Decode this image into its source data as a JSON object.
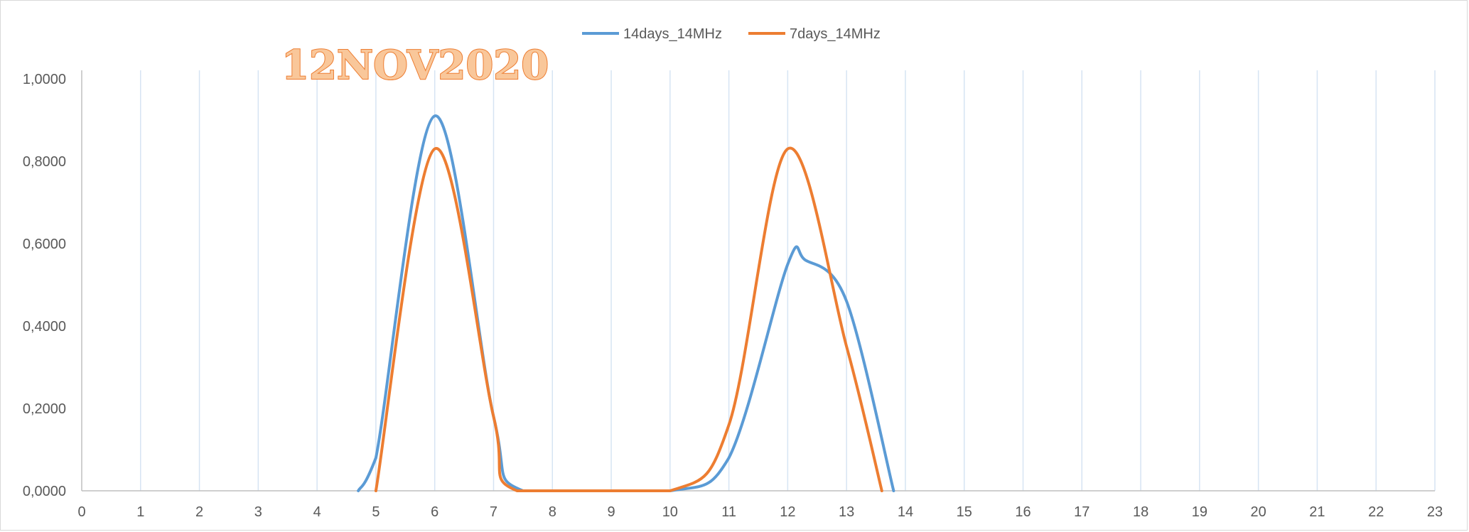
{
  "chart_data": {
    "type": "line",
    "title": "12NOV2020",
    "xlabel": "",
    "ylabel": "",
    "xlim": [
      0,
      23
    ],
    "ylim": [
      0,
      1
    ],
    "x_ticks": [
      "0",
      "1",
      "2",
      "3",
      "4",
      "5",
      "6",
      "7",
      "8",
      "9",
      "10",
      "11",
      "12",
      "13",
      "14",
      "15",
      "16",
      "17",
      "18",
      "19",
      "20",
      "21",
      "22",
      "23"
    ],
    "y_ticks": [
      "0,0000",
      "0,2000",
      "0,4000",
      "0,6000",
      "0,8000",
      "1,0000"
    ],
    "grid": "vertical",
    "legend": "top-center",
    "smooth": true,
    "series": [
      {
        "name": "14days_14MHz",
        "color": "#5b9bd5",
        "points": [
          [
            4.7,
            0.0
          ],
          [
            5.0,
            0.08
          ],
          [
            6.0,
            0.91
          ],
          [
            7.0,
            0.18
          ],
          [
            7.5,
            0.0
          ],
          [
            10.0,
            0.0
          ],
          [
            11.0,
            0.08
          ],
          [
            12.0,
            0.55
          ],
          [
            12.3,
            0.56
          ],
          [
            13.0,
            0.46
          ],
          [
            13.8,
            0.0
          ]
        ]
      },
      {
        "name": "7days_14MHz",
        "color": "#ed7d31",
        "points": [
          [
            5.0,
            0.0
          ],
          [
            6.0,
            0.83
          ],
          [
            7.0,
            0.18
          ],
          [
            7.4,
            0.0
          ],
          [
            10.0,
            0.0
          ],
          [
            11.0,
            0.16
          ],
          [
            12.0,
            0.83
          ],
          [
            13.0,
            0.35
          ],
          [
            13.6,
            0.0
          ]
        ]
      }
    ]
  }
}
